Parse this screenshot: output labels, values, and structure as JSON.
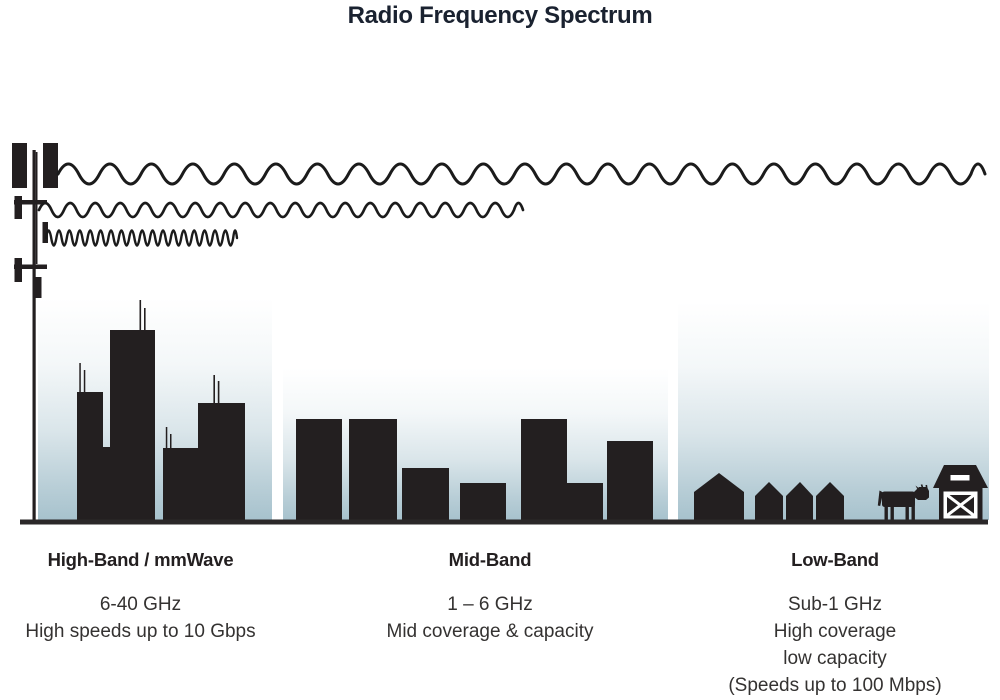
{
  "title": "Radio Frequency Spectrum",
  "bands": [
    {
      "id": "high-band",
      "heading": "High-Band / mmWave",
      "lines": [
        "6-40 GHz",
        "High speeds up to 10 Gbps"
      ],
      "scene": "city-skyscrapers"
    },
    {
      "id": "mid-band",
      "heading": "Mid-Band",
      "lines": [
        "1 – 6 GHz",
        "Mid coverage & capacity"
      ],
      "scene": "town-buildings"
    },
    {
      "id": "low-band",
      "heading": "Low-Band",
      "lines": [
        "Sub-1 GHz",
        "High coverage",
        "low capacity",
        "(Speeds up to 100 Mbps)"
      ],
      "scene": "rural-houses-barn-cow"
    }
  ],
  "icons": [
    "cell-tower-icon",
    "long-wavelength-wave-icon",
    "medium-wavelength-wave-icon",
    "short-wavelength-wave-icon",
    "skyscraper-icon",
    "building-icon",
    "house-icon",
    "cow-icon",
    "barn-icon"
  ],
  "colors": {
    "silhouette": "#231f20",
    "sky_gradient_bottom": "#a7c2cd",
    "ground": "#2b2829",
    "title_text": "#1a2230",
    "body_text": "#343231"
  }
}
